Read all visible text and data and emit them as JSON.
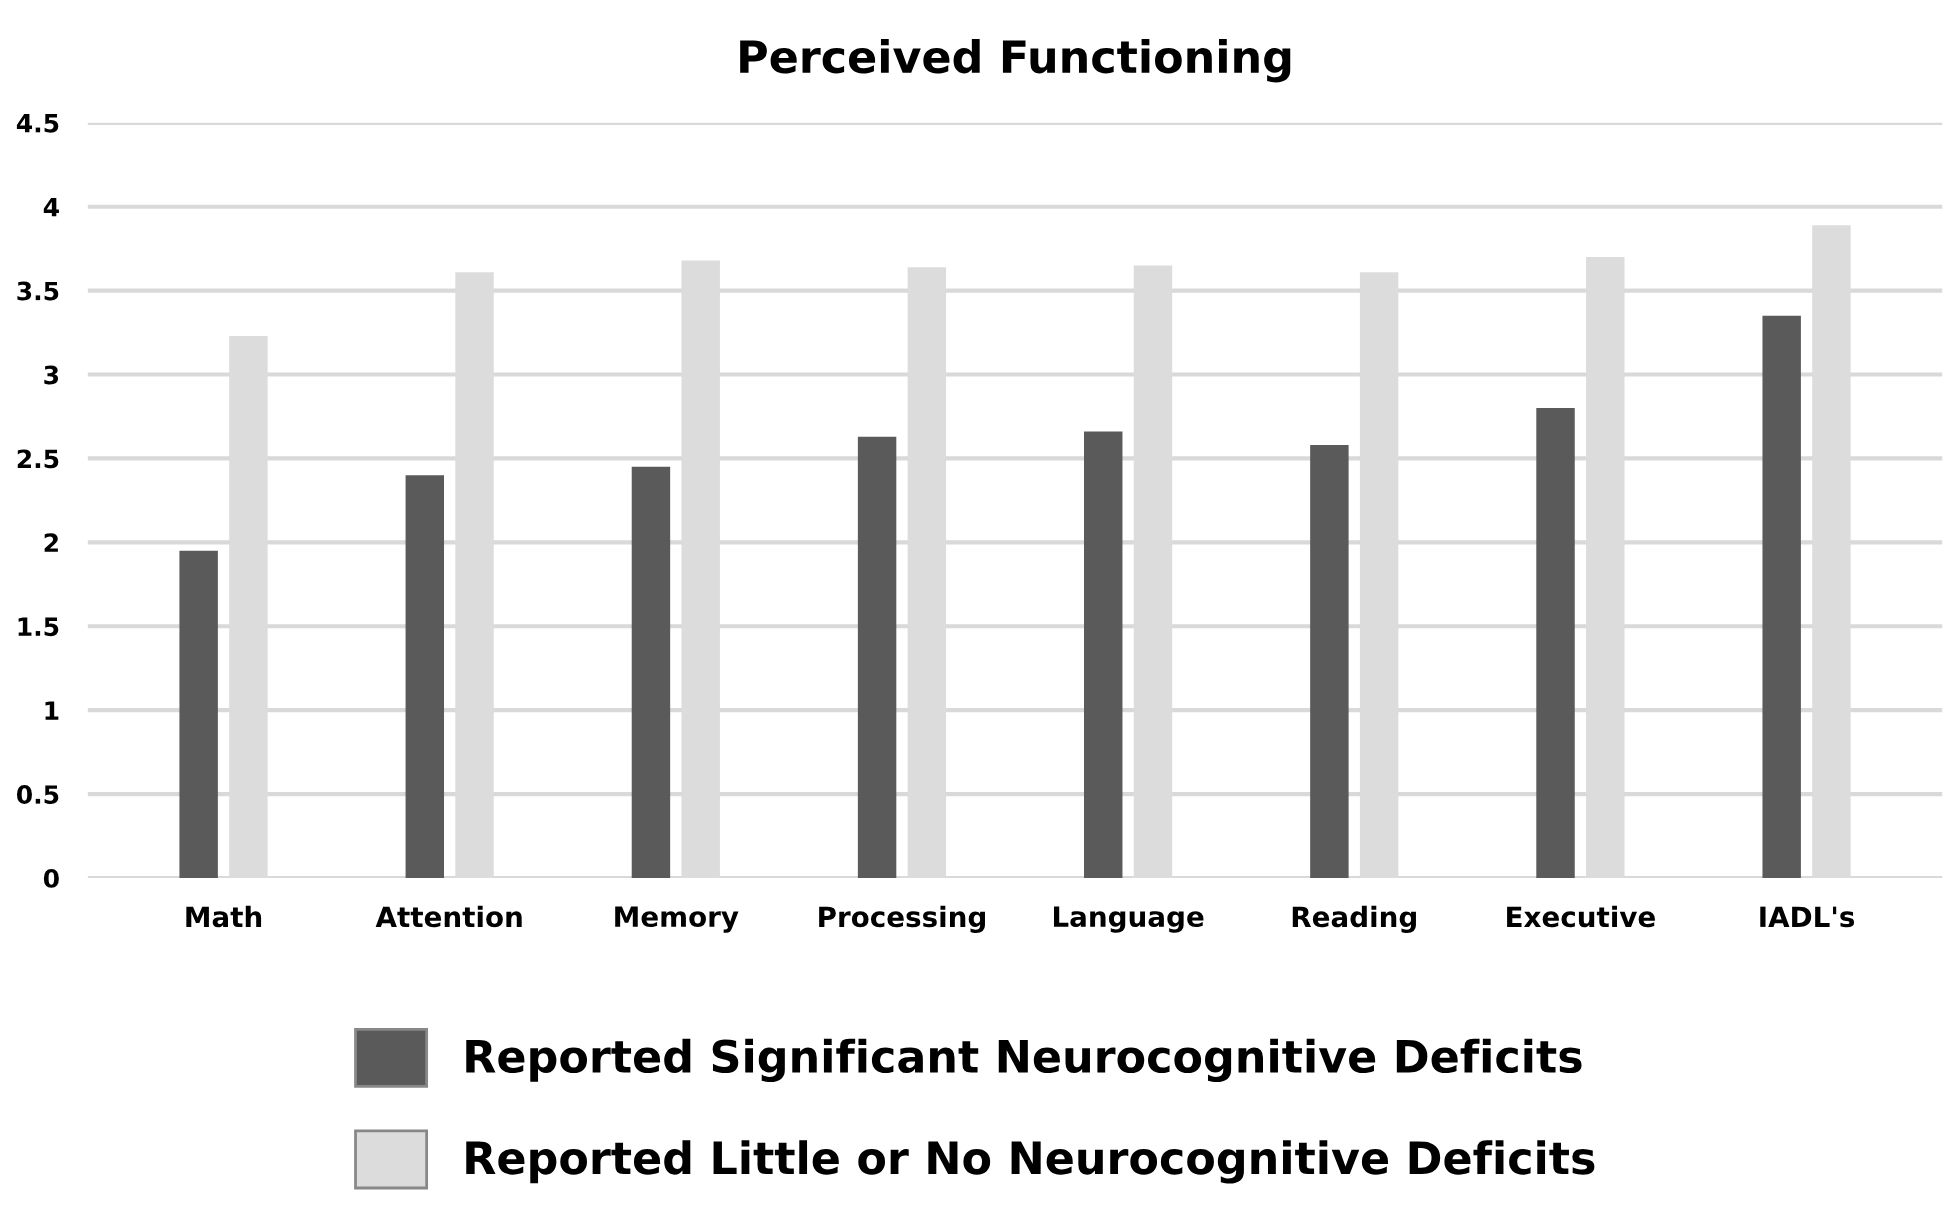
{
  "chart_data": {
    "type": "bar",
    "title": "Perceived Functioning",
    "categories": [
      "Math",
      "Attention",
      "Memory",
      "Processing",
      "Language",
      "Reading",
      "Executive",
      "IADL's"
    ],
    "series": [
      {
        "name": "Reported Significant Neurocognitive Deficits",
        "color": "#5a5a5a",
        "values": [
          1.95,
          2.4,
          2.45,
          2.63,
          2.66,
          2.58,
          2.8,
          3.35
        ]
      },
      {
        "name": "Reported Little or No Neurocognitive Deficits",
        "color": "#dcdcdc",
        "values": [
          3.23,
          3.61,
          3.68,
          3.64,
          3.65,
          3.61,
          3.7,
          3.89
        ]
      }
    ],
    "ylim": [
      0,
      4.5
    ],
    "yticks": [
      0,
      0.5,
      1,
      1.5,
      2,
      2.5,
      3,
      3.5,
      4,
      4.5
    ],
    "grid": "y",
    "legend": "bottom"
  }
}
